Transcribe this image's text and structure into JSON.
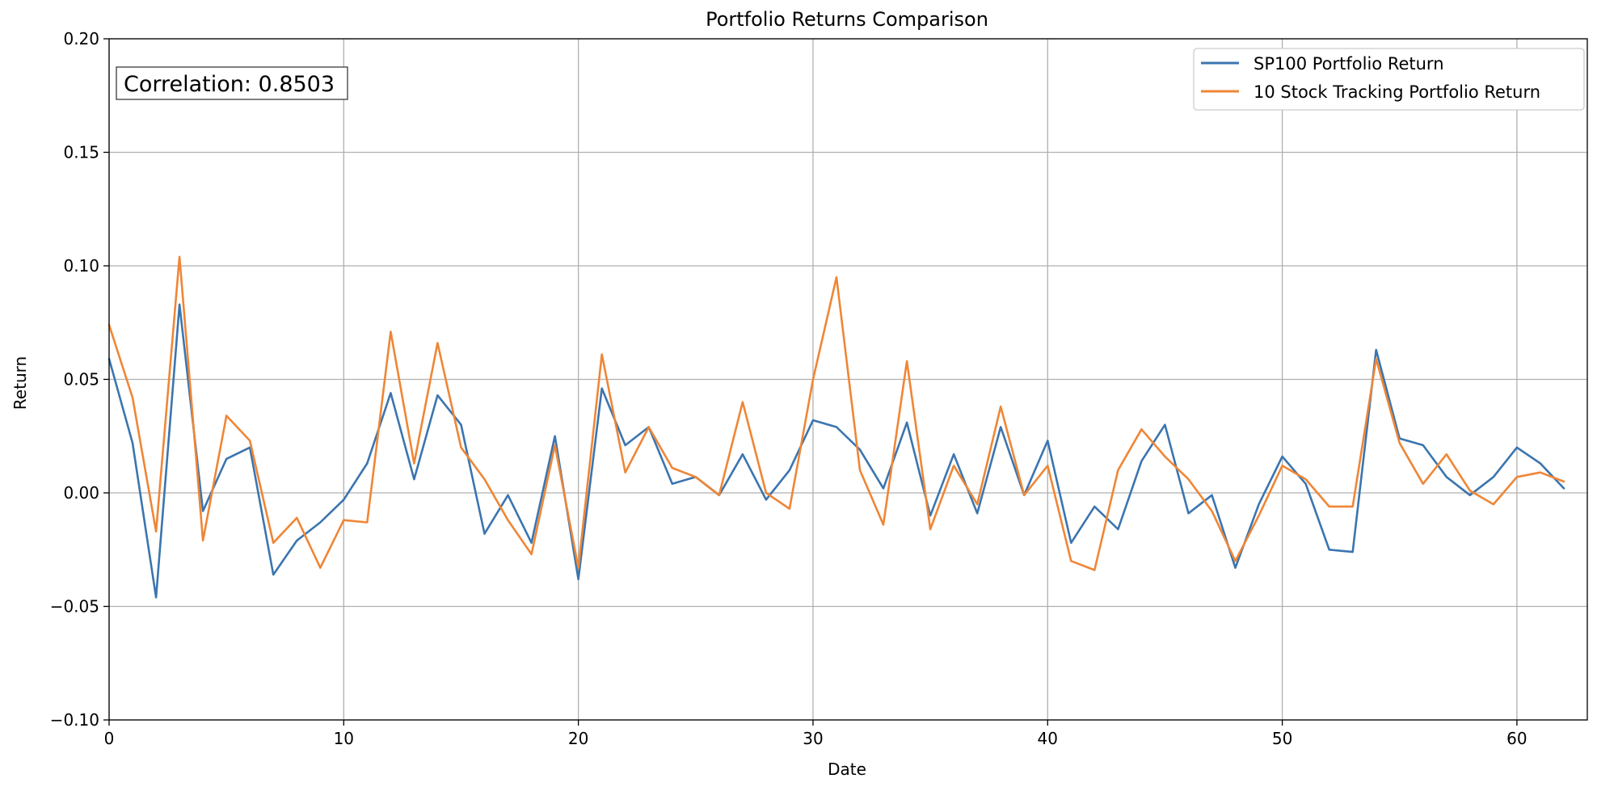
{
  "chart_data": {
    "type": "line",
    "title": "Portfolio Returns Comparison",
    "xlabel": "Date",
    "ylabel": "Return",
    "xlim": [
      0,
      63
    ],
    "ylim": [
      -0.1,
      0.2
    ],
    "x_ticks": [
      0,
      10,
      20,
      30,
      40,
      50,
      60
    ],
    "x_tick_labels": [
      "0",
      "10",
      "20",
      "30",
      "40",
      "50",
      "60"
    ],
    "y_ticks": [
      -0.1,
      -0.05,
      0.0,
      0.05,
      0.1,
      0.15,
      0.2
    ],
    "y_tick_labels": [
      "−0.10",
      "−0.05",
      "0.00",
      "0.05",
      "0.10",
      "0.15",
      "0.20"
    ],
    "grid": true,
    "legend_position": "top-right",
    "annotation": "Correlation: 0.8503",
    "annotation_position": "top-left",
    "series": [
      {
        "name": "SP100 Portfolio Return",
        "color": "#3b75af",
        "x": [
          0,
          1,
          2,
          3,
          4,
          5,
          6,
          7,
          8,
          9,
          10,
          11,
          12,
          13,
          14,
          15,
          16,
          17,
          18,
          19,
          20,
          21,
          22,
          23,
          24,
          25,
          26,
          27,
          28,
          29,
          30,
          31,
          32,
          33,
          34,
          35,
          36,
          37,
          38,
          39,
          40,
          41,
          42,
          43,
          44,
          45,
          46,
          47,
          48,
          49,
          50,
          51,
          52,
          53,
          54,
          55,
          56,
          57,
          58,
          59,
          60,
          61,
          62
        ],
        "values": [
          0.059,
          0.022,
          -0.046,
          0.083,
          -0.008,
          0.015,
          0.02,
          -0.036,
          -0.021,
          -0.013,
          -0.003,
          0.013,
          0.044,
          0.006,
          0.043,
          0.03,
          -0.018,
          -0.001,
          -0.022,
          0.025,
          -0.038,
          0.046,
          0.021,
          0.029,
          0.004,
          0.007,
          -0.001,
          0.017,
          -0.003,
          0.01,
          0.032,
          0.029,
          0.019,
          0.002,
          0.031,
          -0.01,
          0.017,
          -0.009,
          0.029,
          -0.001,
          0.023,
          -0.022,
          -0.006,
          -0.016,
          0.014,
          0.03,
          -0.009,
          -0.001,
          -0.033,
          -0.005,
          0.016,
          0.004,
          -0.025,
          -0.026,
          0.063,
          0.024,
          0.021,
          0.007,
          -0.001,
          0.007,
          0.02,
          0.013,
          0.002
        ]
      },
      {
        "name": "10 Stock Tracking Portfolio Return",
        "color": "#ef8636",
        "x": [
          0,
          1,
          2,
          3,
          4,
          5,
          6,
          7,
          8,
          9,
          10,
          11,
          12,
          13,
          14,
          15,
          16,
          17,
          18,
          19,
          20,
          21,
          22,
          23,
          24,
          25,
          26,
          27,
          28,
          29,
          30,
          31,
          32,
          33,
          34,
          35,
          36,
          37,
          38,
          39,
          40,
          41,
          42,
          43,
          44,
          45,
          46,
          47,
          48,
          49,
          50,
          51,
          52,
          53,
          54,
          55,
          56,
          57,
          58,
          59,
          60,
          61,
          62
        ],
        "values": [
          0.074,
          0.042,
          -0.017,
          0.104,
          -0.021,
          0.034,
          0.023,
          -0.022,
          -0.011,
          -0.033,
          -0.012,
          -0.013,
          0.071,
          0.013,
          0.066,
          0.02,
          0.006,
          -0.012,
          -0.027,
          0.021,
          -0.033,
          0.061,
          0.009,
          0.029,
          0.011,
          0.007,
          -0.001,
          0.04,
          0.0,
          -0.007,
          0.05,
          0.095,
          0.01,
          -0.014,
          0.058,
          -0.016,
          0.012,
          -0.005,
          0.038,
          -0.001,
          0.012,
          -0.03,
          -0.034,
          0.01,
          0.028,
          0.016,
          0.006,
          -0.008,
          -0.03,
          -0.01,
          0.012,
          0.006,
          -0.006,
          -0.006,
          0.059,
          0.022,
          0.004,
          0.017,
          0.001,
          -0.005,
          0.007,
          0.009,
          0.005
        ]
      }
    ]
  }
}
